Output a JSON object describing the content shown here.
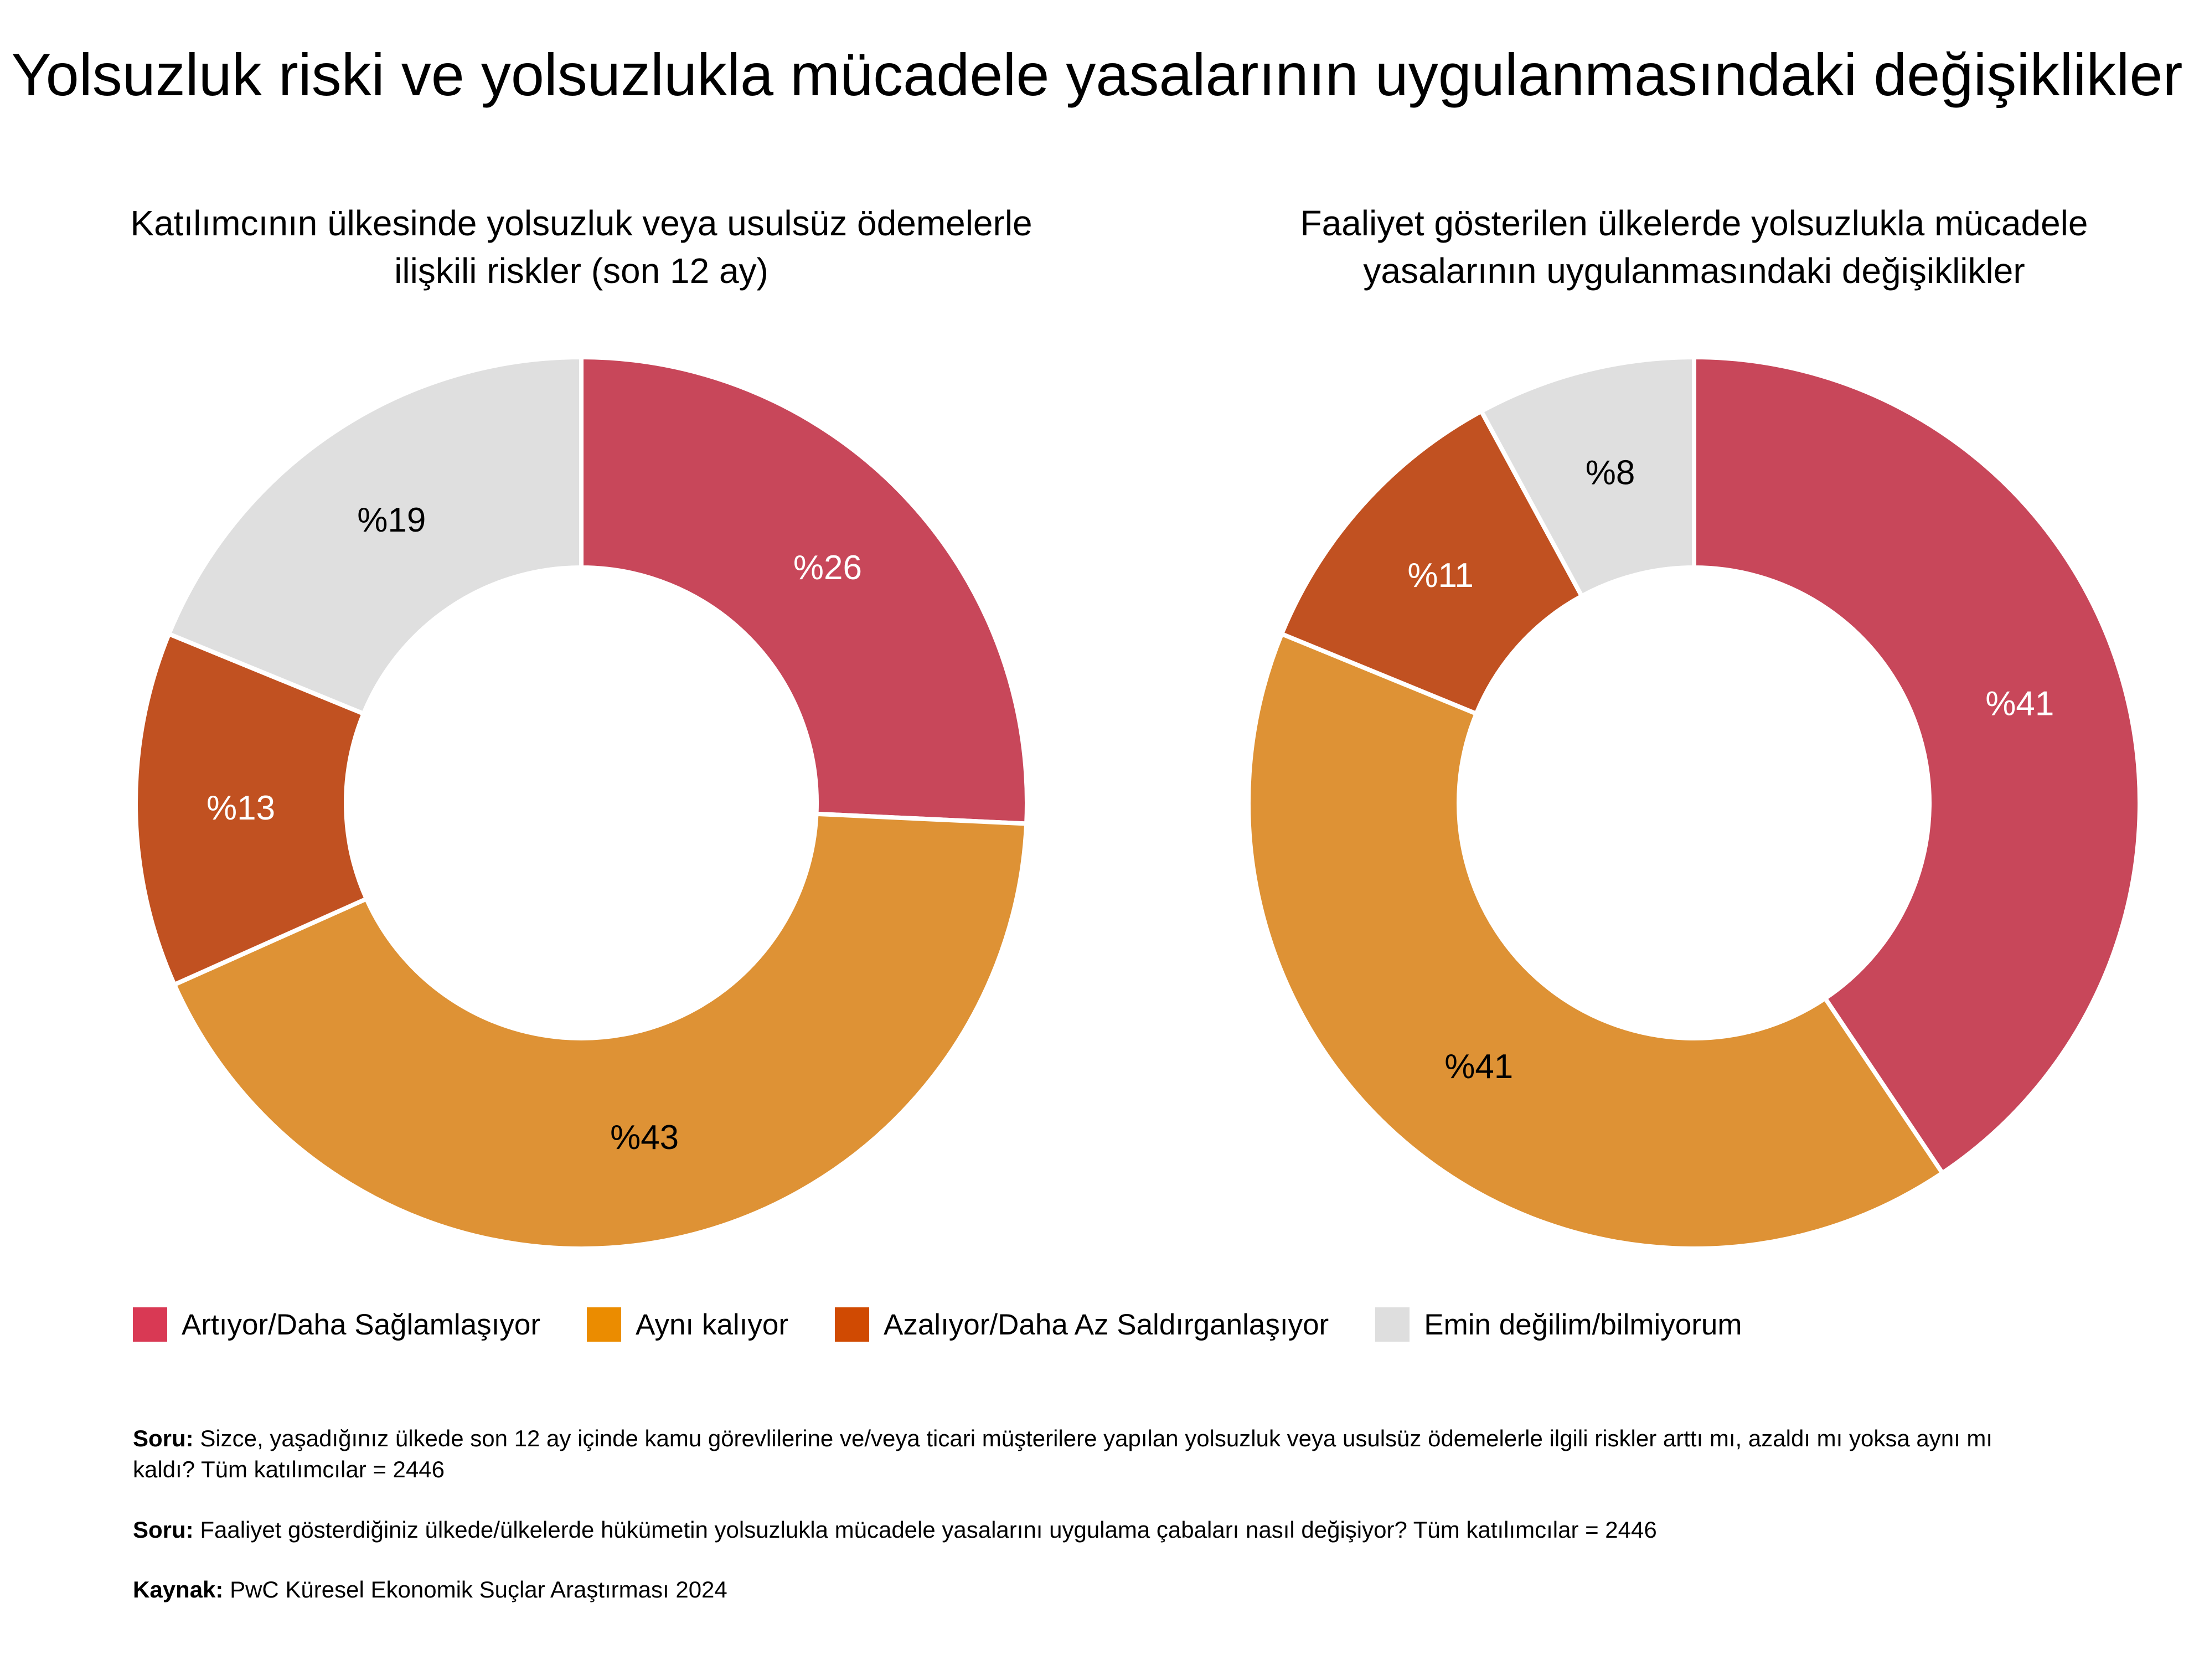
{
  "title": "Yolsuzluk riski ve yolsuzlukla mücadele yasalarının uygulanmasındaki değişiklikler",
  "colors": {
    "increasing": "#C8475A",
    "same": "#DE9235",
    "decreasing": "#C15121",
    "unsure": "#DFDFDF",
    "legend_increasing": "#D93954",
    "legend_same": "#EB8C00",
    "legend_decreasing": "#D04A02",
    "legend_unsure": "#DEDEDE"
  },
  "legend": [
    {
      "label": "Artıyor/Daha Sağlamlaşıyor",
      "color_key": "legend_increasing"
    },
    {
      "label": "Aynı kalıyor",
      "color_key": "legend_same"
    },
    {
      "label": "Azalıyor/Daha Az Saldırganlaşıyor",
      "color_key": "legend_decreasing"
    },
    {
      "label": "Emin değilim/bilmiyorum",
      "color_key": "legend_unsure"
    }
  ],
  "chart_data": [
    {
      "type": "pie",
      "title": "Katılımcının ülkesinde yolsuzluk veya usulsüz ödemelerle ilişkili riskler (son 12 ay)",
      "categories": [
        "Artıyor/Daha Sağlamlaşıyor",
        "Aynı kalıyor",
        "Azalıyor/Daha Az Saldırganlaşıyor",
        "Emin değilim/bilmiyorum"
      ],
      "values": [
        26,
        43,
        13,
        19
      ],
      "data_labels": [
        "%26",
        "%43",
        "%13",
        "%19"
      ],
      "colors": [
        "#C8475A",
        "#DE9235",
        "#C15121",
        "#DFDFDF"
      ],
      "label_colors": [
        "#ffffff",
        "#000000",
        "#ffffff",
        "#000000"
      ]
    },
    {
      "type": "pie",
      "title": "Faaliyet gösterilen ülkelerde yolsuzlukla mücadele yasalarının uygulanmasındaki değişiklikler",
      "categories": [
        "Artıyor/Daha Sağlamlaşıyor",
        "Aynı kalıyor",
        "Azalıyor/Daha Az Saldırganlaşıyor",
        "Emin değilim/bilmiyorum"
      ],
      "values": [
        41,
        41,
        11,
        8
      ],
      "data_labels": [
        "%41",
        "%41",
        "%11",
        "%8"
      ],
      "colors": [
        "#C8475A",
        "#DE9235",
        "#C15121",
        "#DFDFDF"
      ],
      "label_colors": [
        "#ffffff",
        "#000000",
        "#ffffff",
        "#000000"
      ]
    }
  ],
  "notes": {
    "q1_label": "Soru:",
    "q1_text": " Sizce, yaşadığınız ülkede son 12 ay içinde kamu görevlilerine ve/veya ticari müşterilere yapılan yolsuzluk veya usulsüz ödemelerle ilgili riskler arttı mı, azaldı mı yoksa aynı mı kaldı? Tüm katılımcılar = 2446",
    "q2_label": "Soru:",
    "q2_text": " Faaliyet gösterdiğiniz ülkede/ülkelerde hükümetin yolsuzlukla mücadele yasalarını uygulama çabaları nasıl değişiyor? Tüm katılımcılar = 2446",
    "source_label": "Kaynak:",
    "source_text": " PwC Küresel Ekonomik Suçlar Araştırması 2024"
  }
}
